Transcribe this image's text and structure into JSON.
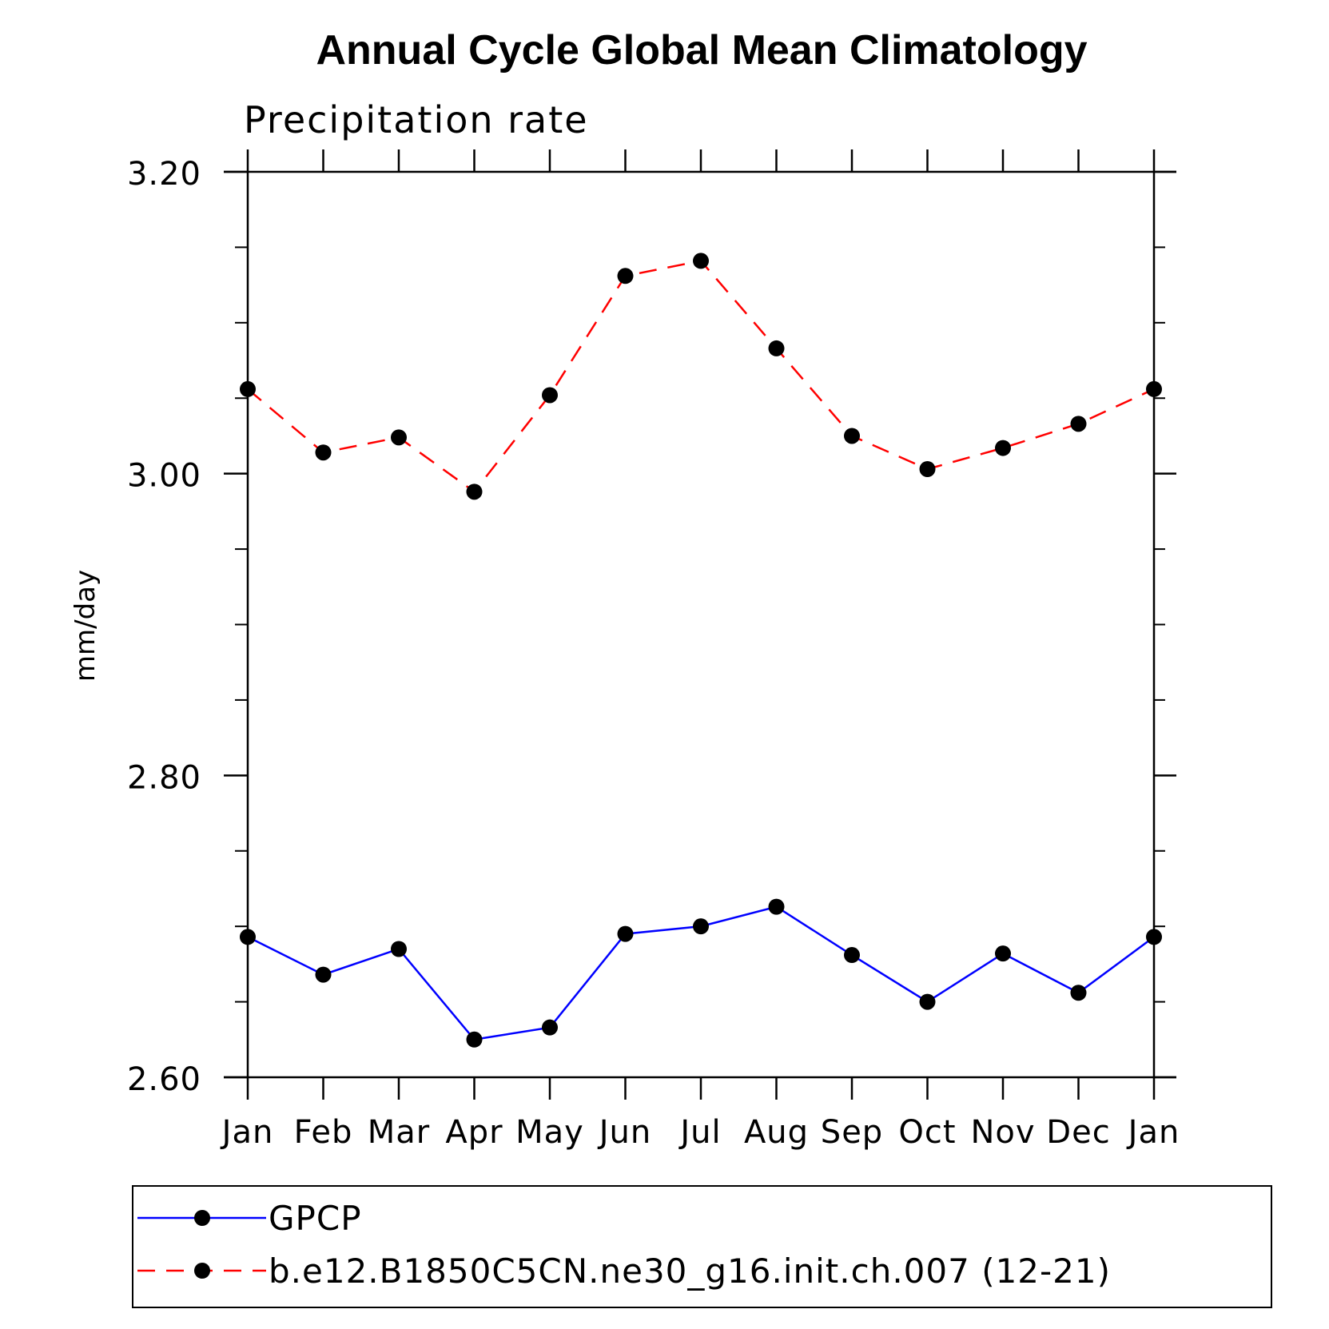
{
  "chart_data": {
    "type": "line",
    "title": "Annual Cycle Global Mean Climatology",
    "subtitle": "Precipitation rate",
    "xlabel": "",
    "ylabel": "mm/day",
    "categories": [
      "Jan",
      "Feb",
      "Mar",
      "Apr",
      "May",
      "Jun",
      "Jul",
      "Aug",
      "Sep",
      "Oct",
      "Nov",
      "Dec",
      "Jan"
    ],
    "ylim": [
      2.6,
      3.2
    ],
    "yticks": [
      2.6,
      2.8,
      3.0,
      3.2
    ],
    "ytick_labels": [
      "2.60",
      "2.80",
      "3.00",
      "3.20"
    ],
    "yminor_step": 0.05,
    "series": [
      {
        "name": "GPCP",
        "color": "#0000ff",
        "style": "solid",
        "marker": "circle",
        "values": [
          2.693,
          2.668,
          2.685,
          2.625,
          2.633,
          2.695,
          2.7,
          2.713,
          2.681,
          2.65,
          2.682,
          2.656,
          2.693
        ]
      },
      {
        "name": "b.e12.B1850C5CN.ne30_g16.init.ch.007 (12-21)",
        "color": "#ff0000",
        "style": "dashed",
        "marker": "circle",
        "values": [
          3.056,
          3.014,
          3.024,
          2.988,
          3.052,
          3.131,
          3.141,
          3.083,
          3.025,
          3.003,
          3.017,
          3.033,
          3.056
        ]
      }
    ],
    "legend_position": "bottom",
    "grid": false
  }
}
